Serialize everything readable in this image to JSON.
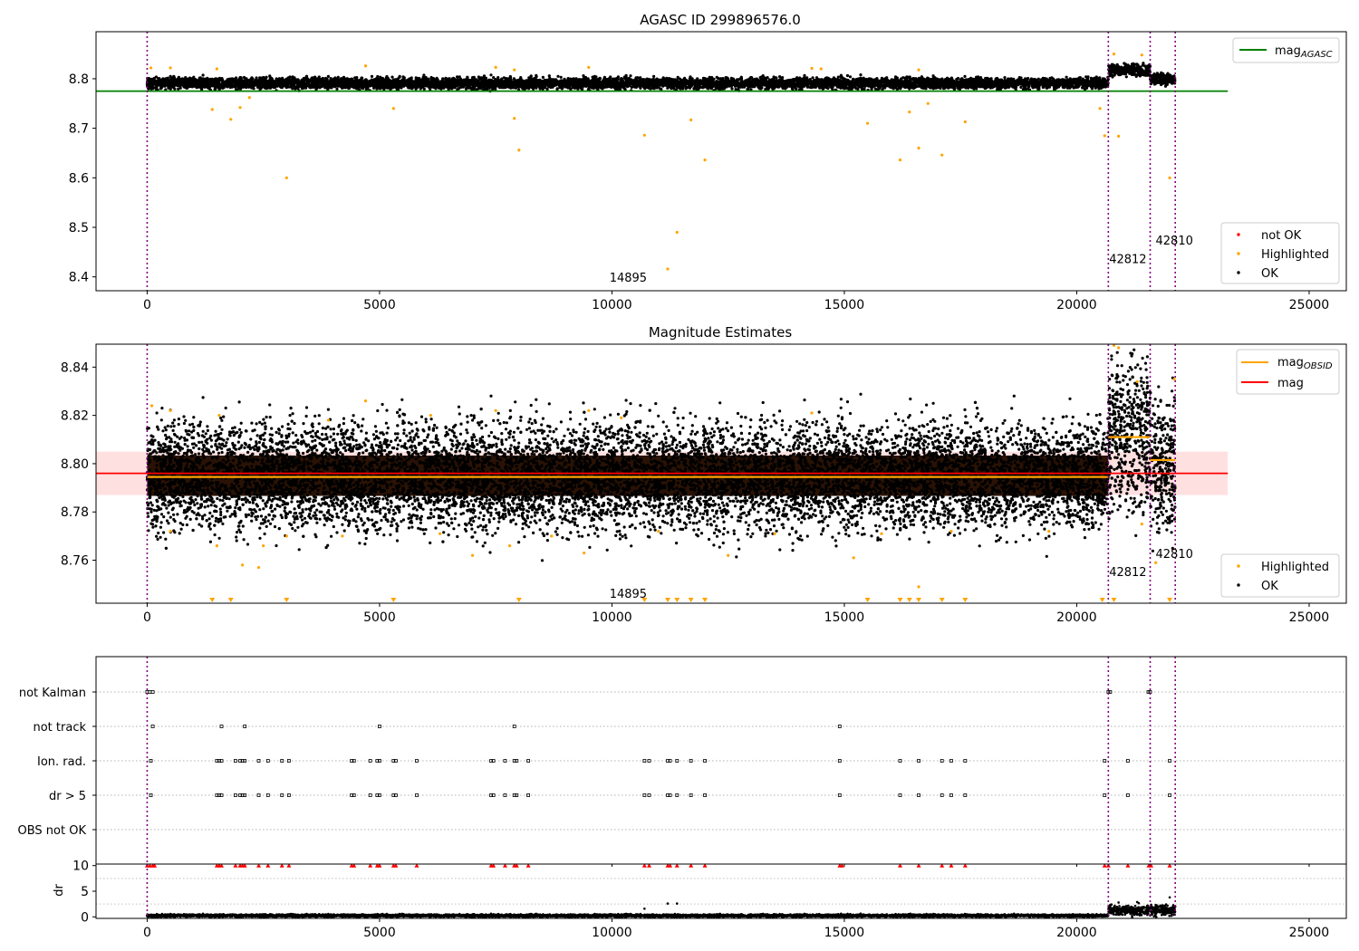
{
  "chart_data": [
    {
      "type": "scatter",
      "title": "AGASC ID 299896576.0",
      "xlim": [
        -1100,
        25800
      ],
      "ylim": [
        8.372,
        8.895
      ],
      "x_ticks": [
        0,
        5000,
        10000,
        15000,
        20000,
        25000
      ],
      "x_tick_labels": [
        "0",
        "5000",
        "10000",
        "15000",
        "20000",
        "25000"
      ],
      "y_ticks": [
        8.4,
        8.5,
        8.6,
        8.7,
        8.8
      ],
      "y_tick_labels": [
        "8.4",
        "8.5",
        "8.6",
        "8.7",
        "8.8"
      ],
      "reference_line": {
        "name_base": "mag",
        "name_sub": "AGASC",
        "y": 8.775,
        "x_range": [
          -1100,
          23250
        ],
        "color": "#008000"
      },
      "obsid_boundaries": [
        0,
        20680,
        21580,
        22120
      ],
      "obsid_labels": [
        {
          "text": "14895",
          "x": 10350,
          "y": 8.39
        },
        {
          "text": "42812",
          "x": 21100,
          "y": 8.428
        },
        {
          "text": "42810",
          "x": 22100,
          "y": 8.465
        }
      ],
      "legends": [
        {
          "placement": "upper-right",
          "entries": [
            {
              "label_base": "mag",
              "label_sub": "AGASC",
              "color": "#008000",
              "marker": "line"
            }
          ]
        },
        {
          "placement": "lower-right",
          "entries": [
            {
              "label": "not OK",
              "color": "#ff0000",
              "marker": "dot"
            },
            {
              "label": "Highlighted",
              "color": "#ffa500",
              "marker": "dot"
            },
            {
              "label": "OK",
              "color": "#000000",
              "marker": "dot"
            }
          ]
        }
      ],
      "series": [
        {
          "name": "OK",
          "color": "#000000",
          "segments": [
            {
              "x_range": [
                0,
                20680
              ],
              "center": 8.791,
              "spread": 0.011
            },
            {
              "x_range": [
                20680,
                21580
              ],
              "center": 8.818,
              "spread": 0.012
            },
            {
              "x_range": [
                21580,
                22120
              ],
              "center": 8.8,
              "spread": 0.01
            }
          ]
        },
        {
          "name": "Highlighted",
          "color": "#ffa500",
          "points": [
            [
              80,
              8.822
            ],
            [
              500,
              8.822
            ],
            [
              1500,
              8.82
            ],
            [
              4700,
              8.826
            ],
            [
              7500,
              8.823
            ],
            [
              7900,
              8.818
            ],
            [
              9500,
              8.823
            ],
            [
              14300,
              8.821
            ],
            [
              14500,
              8.82
            ],
            [
              16600,
              8.818
            ],
            [
              1400,
              8.738
            ],
            [
              1800,
              8.718
            ],
            [
              2000,
              8.742
            ],
            [
              2200,
              8.762
            ],
            [
              3000,
              8.6
            ],
            [
              5300,
              8.74
            ],
            [
              7900,
              8.72
            ],
            [
              8000,
              8.656
            ],
            [
              10700,
              8.686
            ],
            [
              11200,
              8.416
            ],
            [
              11400,
              8.49
            ],
            [
              11700,
              8.717
            ],
            [
              12000,
              8.636
            ],
            [
              15500,
              8.71
            ],
            [
              16200,
              8.636
            ],
            [
              16400,
              8.733
            ],
            [
              16600,
              8.66
            ],
            [
              16800,
              8.75
            ],
            [
              17100,
              8.646
            ],
            [
              17600,
              8.713
            ],
            [
              20500,
              8.74
            ],
            [
              20600,
              8.685
            ],
            [
              20900,
              8.684
            ],
            [
              20800,
              8.85
            ],
            [
              22000,
              8.6
            ],
            [
              21400,
              8.848
            ]
          ]
        }
      ]
    },
    {
      "type": "scatter",
      "title": "Magnitude Estimates",
      "xlim": [
        -1100,
        25800
      ],
      "ylim": [
        8.7422,
        8.8495
      ],
      "x_ticks": [
        0,
        5000,
        10000,
        15000,
        20000,
        25000
      ],
      "x_tick_labels": [
        "0",
        "5000",
        "10000",
        "15000",
        "20000",
        "25000"
      ],
      "y_ticks": [
        8.76,
        8.78,
        8.8,
        8.82,
        8.84
      ],
      "y_tick_labels": [
        "8.76",
        "8.78",
        "8.80",
        "8.82",
        "8.84"
      ],
      "mag_line": {
        "name": "mag",
        "y": 8.796,
        "x_range": [
          -1100,
          23250
        ],
        "band": [
          8.787,
          8.805
        ],
        "color": "#ff0000"
      },
      "obsid_mag": [
        {
          "x_range": [
            0,
            20680
          ],
          "y": 8.7945
        },
        {
          "x_range": [
            20680,
            21580
          ],
          "y": 8.811
        },
        {
          "x_range": [
            21580,
            22120
          ],
          "y": 8.8015
        }
      ],
      "obsid_boundaries": [
        0,
        20680,
        21580,
        22120
      ],
      "obsid_labels": [
        {
          "text": "14895",
          "x": 10350,
          "y": 8.7445
        },
        {
          "text": "42812",
          "x": 21100,
          "y": 8.7535
        },
        {
          "text": "42810",
          "x": 22100,
          "y": 8.761
        }
      ],
      "legends": [
        {
          "placement": "upper-right",
          "entries": [
            {
              "label_base": "mag",
              "label_sub": "OBSID",
              "color": "#ffa500",
              "marker": "line"
            },
            {
              "label": "mag",
              "color": "#ff0000",
              "marker": "line"
            }
          ]
        },
        {
          "placement": "lower-right",
          "entries": [
            {
              "label": "Highlighted",
              "color": "#ffa500",
              "marker": "dot"
            },
            {
              "label": "OK",
              "color": "#000000",
              "marker": "dot"
            }
          ]
        }
      ],
      "series": [
        {
          "name": "OK",
          "color": "#000000",
          "segments": [
            {
              "x_range": [
                0,
                20680
              ],
              "center": 8.795,
              "spread": 0.022
            },
            {
              "x_range": [
                20680,
                21580
              ],
              "center": 8.812,
              "spread": 0.03
            },
            {
              "x_range": [
                21580,
                22120
              ],
              "center": 8.8,
              "spread": 0.028
            }
          ]
        },
        {
          "name": "Highlighted",
          "color": "#ffa500",
          "points": [
            [
              100,
              8.824
            ],
            [
              500,
              8.822
            ],
            [
              1500,
              8.766
            ],
            [
              1550,
              8.82
            ],
            [
              2050,
              8.758
            ],
            [
              2400,
              8.757
            ],
            [
              2500,
              8.766
            ],
            [
              3900,
              8.818
            ],
            [
              4700,
              8.826
            ],
            [
              6100,
              8.82
            ],
            [
              7000,
              8.762
            ],
            [
              7500,
              8.822
            ],
            [
              7800,
              8.766
            ],
            [
              9400,
              8.763
            ],
            [
              9500,
              8.822
            ],
            [
              10200,
              8.819
            ],
            [
              12500,
              8.762
            ],
            [
              14300,
              8.821
            ],
            [
              15200,
              8.761
            ],
            [
              16600,
              8.749
            ],
            [
              500,
              8.772
            ],
            [
              3000,
              8.77
            ],
            [
              4200,
              8.77
            ],
            [
              6300,
              8.771
            ],
            [
              8700,
              8.77
            ],
            [
              11000,
              8.772
            ],
            [
              13500,
              8.771
            ],
            [
              15800,
              8.771
            ],
            [
              17300,
              8.772
            ],
            [
              19400,
              8.772
            ],
            [
              20800,
              8.849
            ],
            [
              20900,
              8.848
            ],
            [
              21300,
              8.834
            ],
            [
              21400,
              8.775
            ],
            [
              21700,
              8.759
            ],
            [
              22100,
              8.835
            ]
          ]
        },
        {
          "name": "Highlighted (below axis)",
          "color": "#ffa500",
          "marker": "triangle-down",
          "x": [
            1400,
            1800,
            3000,
            5300,
            8000,
            10700,
            11200,
            11400,
            11700,
            12000,
            15500,
            16200,
            16400,
            16600,
            17100,
            17600,
            20550,
            20800,
            22000
          ]
        }
      ]
    },
    {
      "type": "scatter",
      "categories": [
        "not Kalman",
        "not track",
        "Ion. rad.",
        "dr > 5",
        "OBS not OK"
      ],
      "xlim": [
        -1100,
        25800
      ],
      "obsid_boundaries": [
        0,
        20680,
        21580,
        22120
      ],
      "flags": {
        "not Kalman": [
          0,
          60,
          120,
          20680,
          20720,
          21540,
          21580
        ],
        "not track": [
          120,
          1600,
          2100,
          5000,
          7900,
          14900
        ],
        "Ion. rad.": [
          80,
          1500,
          1550,
          1600,
          1900,
          2000,
          2050,
          2100,
          2400,
          2600,
          2900,
          3050,
          4400,
          4450,
          4800,
          4950,
          5000,
          5300,
          5350,
          5800,
          7400,
          7450,
          7700,
          7900,
          7950,
          8200,
          10700,
          10800,
          11200,
          11250,
          11400,
          11700,
          12000,
          14900,
          16200,
          16600,
          17100,
          17300,
          17600,
          20600,
          21100,
          22000
        ],
        "dr > 5": [
          80,
          1500,
          1550,
          1600,
          1900,
          2000,
          2050,
          2100,
          2400,
          2600,
          2900,
          3050,
          4400,
          4450,
          4800,
          4950,
          5000,
          5300,
          5350,
          5800,
          7400,
          7450,
          7700,
          7900,
          7950,
          8200,
          10700,
          10800,
          11200,
          11250,
          11400,
          11700,
          12000,
          14900,
          16200,
          16600,
          17100,
          17300,
          17600,
          20600,
          21100,
          22000
        ],
        "OBS not OK": []
      }
    },
    {
      "type": "scatter",
      "ylabel": "dr",
      "xlim": [
        -1100,
        25800
      ],
      "ylim": [
        -0.3,
        10.3
      ],
      "x_ticks": [
        0,
        5000,
        10000,
        15000,
        20000,
        25000
      ],
      "x_tick_labels": [
        "0",
        "5000",
        "10000",
        "15000",
        "20000",
        "25000"
      ],
      "y_ticks": [
        0,
        5,
        10
      ],
      "y_tick_labels": [
        "0",
        "5",
        "10"
      ],
      "obsid_boundaries": [
        0,
        20680,
        21580,
        22120
      ],
      "series": [
        {
          "name": "OK",
          "color": "#000000",
          "segments": [
            {
              "x_range": [
                0,
                20680
              ],
              "center": 0.25,
              "spread": 0.25
            },
            {
              "x_range": [
                20680,
                22120
              ],
              "center": 1.3,
              "spread": 1.0
            }
          ]
        },
        {
          "name": "not OK",
          "color": "#ff0000",
          "marker": "triangle-up",
          "y": 10,
          "x": [
            0,
            60,
            120,
            160,
            1500,
            1550,
            1600,
            1900,
            2000,
            2050,
            2100,
            2400,
            2600,
            2900,
            3050,
            4400,
            4450,
            4800,
            4950,
            5000,
            5300,
            5350,
            5800,
            7400,
            7450,
            7700,
            7900,
            7950,
            8200,
            10700,
            10800,
            11200,
            11250,
            11400,
            11700,
            12000,
            14900,
            14950,
            16200,
            16600,
            17100,
            17300,
            17600,
            20600,
            20680,
            21100,
            21550,
            21600,
            22000
          ]
        },
        {
          "name": "OK outliers",
          "color": "#000000",
          "points": [
            [
              10700,
              1.6
            ],
            [
              11200,
              2.6
            ],
            [
              11400,
              2.6
            ],
            [
              21800,
              2.2
            ],
            [
              22000,
              3.8
            ],
            [
              20900,
              2.8
            ],
            [
              21300,
              2.9
            ]
          ]
        }
      ]
    }
  ]
}
